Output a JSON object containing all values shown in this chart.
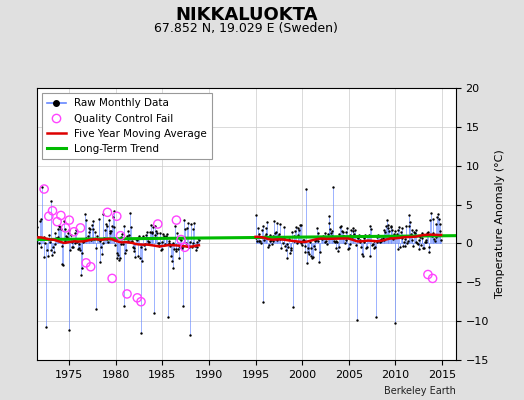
{
  "title": "NIKKALUOKTA",
  "subtitle": "67.852 N, 19.029 E (Sweden)",
  "ylabel": "Temperature Anomaly (°C)",
  "credit": "Berkeley Earth",
  "xlim": [
    1971.5,
    2016.5
  ],
  "ylim": [
    -15,
    20
  ],
  "yticks": [
    -15,
    -10,
    -5,
    0,
    5,
    10,
    15,
    20
  ],
  "xticks": [
    1975,
    1980,
    1985,
    1990,
    1995,
    2000,
    2005,
    2010,
    2015
  ],
  "bg_color": "#e0e0e0",
  "plot_bg_color": "#ffffff",
  "raw_line_color": "#6688ff",
  "raw_dot_color": "#000000",
  "qc_fail_color": "#ff44ff",
  "moving_avg_color": "#dd0000",
  "trend_color": "#00bb00",
  "legend_fontsize": 7.5,
  "title_fontsize": 13,
  "subtitle_fontsize": 9,
  "axis_fontsize": 8
}
